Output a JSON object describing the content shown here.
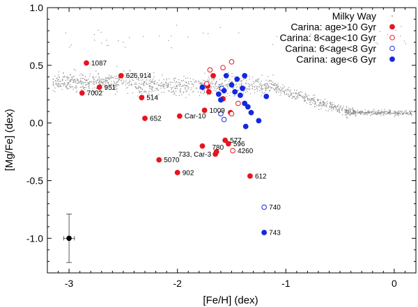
{
  "chart_data": {
    "type": "scatter",
    "title": "",
    "xlabel": "[Fe/H] (dex)",
    "ylabel": "[Mg/Fe] (dex)",
    "xlim": [
      -3.2,
      0.2
    ],
    "ylim": [
      -1.3,
      1.0
    ],
    "grid": false,
    "legend_position": "top-right",
    "x_ticks": [
      {
        "value": -3,
        "label": "-3"
      },
      {
        "value": -2,
        "label": "-2"
      },
      {
        "value": -1,
        "label": "-1"
      },
      {
        "value": 0,
        "label": "0"
      }
    ],
    "y_ticks": [
      {
        "value": 1.0,
        "label": "1.0"
      },
      {
        "value": 0.5,
        "label": "0.5"
      },
      {
        "value": 0.0,
        "label": "0.0"
      },
      {
        "value": -0.5,
        "label": "-0.5"
      },
      {
        "value": -1.0,
        "label": "-1.0"
      }
    ],
    "series": [
      {
        "name": "Milky Way",
        "marker": "dot",
        "color": "#8c8c8c"
      },
      {
        "name": "Carina: age>10 Gyr",
        "marker": "filled-circle",
        "color": "#e8141e",
        "points": [
          {
            "x": -2.84,
            "y": 0.52,
            "label": "1087"
          },
          {
            "x": -2.52,
            "y": 0.41,
            "label": "626,914"
          },
          {
            "x": -2.72,
            "y": 0.31,
            "label": "951"
          },
          {
            "x": -2.88,
            "y": 0.26,
            "label": "7002"
          },
          {
            "x": -2.33,
            "y": 0.22,
            "label": "514"
          },
          {
            "x": -2.3,
            "y": 0.04,
            "label": "652"
          },
          {
            "x": -1.75,
            "y": 0.11,
            "label": "1009"
          },
          {
            "x": -1.98,
            "y": 0.06,
            "label": "Car-10"
          },
          {
            "x": -1.56,
            "y": -0.15,
            "label": "577"
          },
          {
            "x": -1.53,
            "y": -0.18,
            "label": "596"
          },
          {
            "x": -1.77,
            "y": -0.2,
            "label": "780"
          },
          {
            "x": -1.64,
            "y": -0.25,
            "label": ""
          },
          {
            "x": -1.65,
            "y": -0.27,
            "label": "733, Car-3"
          },
          {
            "x": -2.17,
            "y": -0.32,
            "label": "5070"
          },
          {
            "x": -2.0,
            "y": -0.43,
            "label": "902"
          },
          {
            "x": -1.33,
            "y": -0.46,
            "label": "612"
          },
          {
            "x": -1.72,
            "y": 0.32,
            "label": ""
          },
          {
            "x": -1.71,
            "y": 0.27,
            "label": ""
          },
          {
            "x": -1.67,
            "y": 0.41,
            "label": ""
          },
          {
            "x": -1.58,
            "y": 0.21,
            "label": ""
          },
          {
            "x": -1.51,
            "y": 0.09,
            "label": ""
          }
        ]
      },
      {
        "name": "Carina: 8<age<10 Gyr",
        "marker": "open-circle",
        "color": "#e8141e",
        "points": [
          {
            "x": -1.7,
            "y": 0.46,
            "label": ""
          },
          {
            "x": -1.58,
            "y": 0.48,
            "label": ""
          },
          {
            "x": -1.5,
            "y": 0.53,
            "label": ""
          },
          {
            "x": -1.73,
            "y": 0.34,
            "label": ""
          },
          {
            "x": -1.44,
            "y": 0.17,
            "label": ""
          },
          {
            "x": -1.5,
            "y": 0.08,
            "label": ""
          },
          {
            "x": -1.49,
            "y": -0.24,
            "label": "4260"
          }
        ]
      },
      {
        "name": "Carina: 6<age<8 Gyr",
        "marker": "open-circle",
        "color": "#1428e0",
        "points": [
          {
            "x": -1.59,
            "y": 0.3,
            "label": ""
          },
          {
            "x": -1.6,
            "y": 0.08,
            "label": ""
          },
          {
            "x": -1.57,
            "y": 0.03,
            "label": ""
          },
          {
            "x": -1.2,
            "y": -0.73,
            "label": "740"
          }
        ]
      },
      {
        "name": "Carina: age<6 Gyr",
        "marker": "filled-circle",
        "color": "#1428e0",
        "points": [
          {
            "x": -1.77,
            "y": 0.31,
            "label": ""
          },
          {
            "x": -1.62,
            "y": 0.25,
            "label": ""
          },
          {
            "x": -1.6,
            "y": 0.2,
            "label": ""
          },
          {
            "x": -1.57,
            "y": 0.28,
            "label": ""
          },
          {
            "x": -1.55,
            "y": 0.41,
            "label": ""
          },
          {
            "x": -1.5,
            "y": 0.33,
            "label": ""
          },
          {
            "x": -1.47,
            "y": 0.27,
            "label": ""
          },
          {
            "x": -1.45,
            "y": 0.38,
            "label": ""
          },
          {
            "x": -1.42,
            "y": 0.24,
            "label": ""
          },
          {
            "x": -1.4,
            "y": 0.3,
            "label": ""
          },
          {
            "x": -1.38,
            "y": 0.17,
            "label": ""
          },
          {
            "x": -1.38,
            "y": 0.41,
            "label": ""
          },
          {
            "x": -1.35,
            "y": 0.14,
            "label": ""
          },
          {
            "x": -1.32,
            "y": 0.09,
            "label": ""
          },
          {
            "x": -1.25,
            "y": 0.02,
            "label": ""
          },
          {
            "x": -1.18,
            "y": 0.23,
            "label": ""
          },
          {
            "x": -1.37,
            "y": -0.03,
            "label": ""
          },
          {
            "x": -1.2,
            "y": -0.95,
            "label": "743"
          }
        ]
      }
    ],
    "error_bar": {
      "x": -3.0,
      "y": -1.0,
      "x_error": 0.05,
      "y_error": 0.21
    }
  }
}
